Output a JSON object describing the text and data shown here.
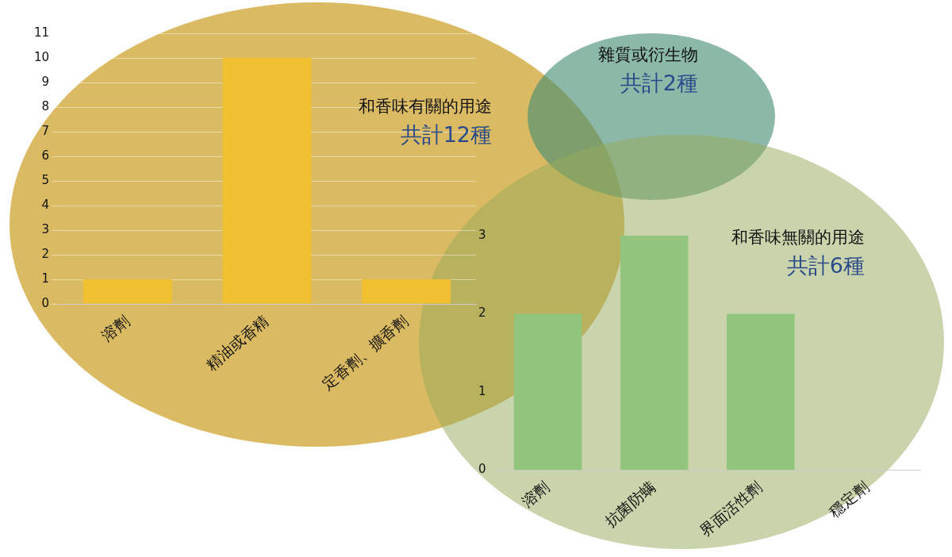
{
  "chart_data": [
    {
      "type": "bar",
      "title": "和香味有關的用途",
      "subtitle": "共計12種",
      "categories": [
        "溶劑",
        "精油或香精",
        "定香劑、擴香劑"
      ],
      "values": [
        1,
        10,
        1
      ],
      "color": "#f0c030",
      "ylim": [
        0,
        11
      ],
      "yticks": [
        0,
        1,
        2,
        3,
        4,
        5,
        6,
        7,
        8,
        9,
        10,
        11
      ],
      "grid": "y"
    },
    {
      "type": "other",
      "title": "雜質或衍生物",
      "subtitle": "共計2種"
    },
    {
      "type": "bar",
      "title": "和香味無關的用途",
      "subtitle": "共計6種",
      "categories": [
        "溶劑",
        "抗菌防螨",
        "界面活性劑",
        "穩定劑"
      ],
      "values": [
        2,
        3,
        2,
        0
      ],
      "color": "#93c47d",
      "ylim": [
        0,
        3
      ],
      "yticks": [
        0,
        1,
        2,
        3
      ]
    }
  ]
}
